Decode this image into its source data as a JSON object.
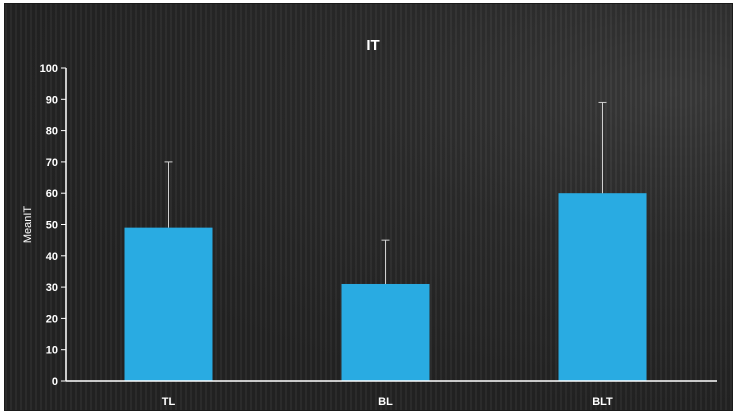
{
  "chart_data": {
    "type": "bar",
    "title": "IT",
    "xlabel": "",
    "ylabel": "MeanIT",
    "categories": [
      "TL",
      "BL",
      "BLT"
    ],
    "values": [
      49,
      31,
      60
    ],
    "error_upper": [
      70,
      45,
      89
    ],
    "ylim": [
      0,
      100
    ],
    "yticks": [
      0,
      10,
      20,
      30,
      40,
      50,
      60,
      70,
      80,
      90,
      100
    ],
    "grid": false,
    "legend": "none",
    "bar_color": "#29abe2",
    "axis_color": "#ffffff",
    "background_color": "#262626"
  }
}
